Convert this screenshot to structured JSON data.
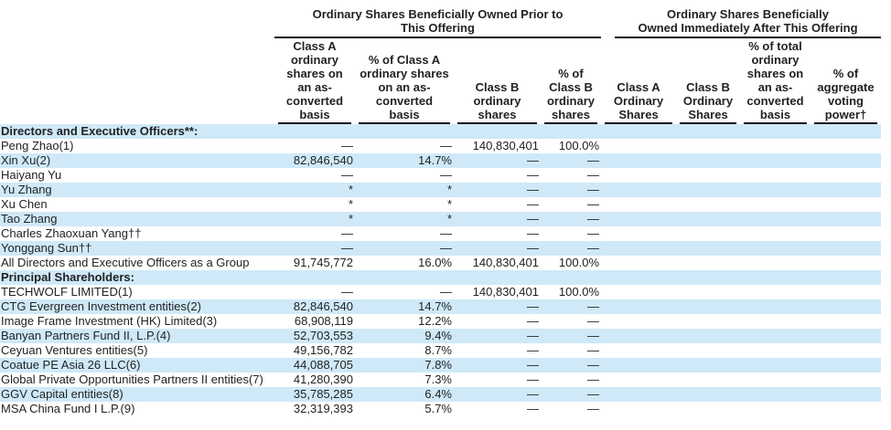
{
  "colors": {
    "row_stripe": "#cfe9f8",
    "header_rule": "#111111",
    "text": "#222222",
    "background": "#ffffff"
  },
  "table": {
    "groups": [
      {
        "title_lines": [
          "Ordinary Shares Beneficially Owned Prior to",
          "This Offering"
        ]
      },
      {
        "title_lines": [
          "Ordinary Shares Beneficially",
          "Owned Immediately After This Offering"
        ]
      }
    ],
    "columns": [
      {
        "label": "Class A ordinary shares on an as-converted basis"
      },
      {
        "label": "% of Class A ordinary shares on an as-converted basis"
      },
      {
        "label": "Class B ordinary shares"
      },
      {
        "label": "% of Class B ordinary shares"
      },
      {
        "label": "Class A Ordinary Shares"
      },
      {
        "label": "Class B Ordinary Shares"
      },
      {
        "label": "% of total ordinary shares on an as-converted basis"
      },
      {
        "label": "% of aggregate voting power†"
      }
    ],
    "rows": [
      {
        "type": "section",
        "name": "Directors and Executive Officers**:"
      },
      {
        "type": "data",
        "name": "Peng Zhao(1)",
        "values": [
          "—",
          "—",
          "140,830,401",
          "100.0%",
          "",
          "",
          "",
          ""
        ]
      },
      {
        "type": "data",
        "name": "Xin Xu(2)",
        "values": [
          "82,846,540",
          "14.7%",
          "—",
          "—",
          "",
          "",
          "",
          ""
        ]
      },
      {
        "type": "data",
        "name": "Haiyang Yu",
        "values": [
          "—",
          "—",
          "—",
          "—",
          "",
          "",
          "",
          ""
        ]
      },
      {
        "type": "data",
        "name": "Yu Zhang",
        "values": [
          "*",
          "*",
          "—",
          "—",
          "",
          "",
          "",
          ""
        ]
      },
      {
        "type": "data",
        "name": "Xu Chen",
        "values": [
          "*",
          "*",
          "—",
          "—",
          "",
          "",
          "",
          ""
        ]
      },
      {
        "type": "data",
        "name": "Tao Zhang",
        "values": [
          "*",
          "*",
          "—",
          "—",
          "",
          "",
          "",
          ""
        ]
      },
      {
        "type": "data",
        "name": "Charles Zhaoxuan Yang††",
        "values": [
          "—",
          "—",
          "—",
          "—",
          "",
          "",
          "",
          ""
        ]
      },
      {
        "type": "data",
        "name": "Yonggang Sun††",
        "values": [
          "—",
          "—",
          "—",
          "—",
          "",
          "",
          "",
          ""
        ]
      },
      {
        "type": "data",
        "name": "All Directors and Executive Officers as a Group",
        "values": [
          "91,745,772",
          "16.0%",
          "140,830,401",
          "100.0%",
          "",
          "",
          "",
          ""
        ]
      },
      {
        "type": "section",
        "name": "Principal Shareholders:"
      },
      {
        "type": "data",
        "name": "TECHWOLF LIMITED(1)",
        "values": [
          "—",
          "—",
          "140,830,401",
          "100.0%",
          "",
          "",
          "",
          ""
        ]
      },
      {
        "type": "data",
        "name": "CTG Evergreen Investment entities(2)",
        "values": [
          "82,846,540",
          "14.7%",
          "—",
          "—",
          "",
          "",
          "",
          ""
        ]
      },
      {
        "type": "data",
        "name": "Image Frame Investment (HK) Limited(3)",
        "values": [
          "68,908,119",
          "12.2%",
          "—",
          "—",
          "",
          "",
          "",
          ""
        ]
      },
      {
        "type": "data",
        "name": "Banyan Partners Fund II, L.P.(4)",
        "values": [
          "52,703,553",
          "9.4%",
          "—",
          "—",
          "",
          "",
          "",
          ""
        ]
      },
      {
        "type": "data",
        "name": "Ceyuan Ventures entities(5)",
        "values": [
          "49,156,782",
          "8.7%",
          "—",
          "—",
          "",
          "",
          "",
          ""
        ]
      },
      {
        "type": "data",
        "name": "Coatue PE Asia 26 LLC(6)",
        "values": [
          "44,088,705",
          "7.8%",
          "—",
          "—",
          "",
          "",
          "",
          ""
        ]
      },
      {
        "type": "data",
        "name": "Global Private Opportunities Partners II entities(7)",
        "values": [
          "41,280,390",
          "7.3%",
          "—",
          "—",
          "",
          "",
          "",
          ""
        ]
      },
      {
        "type": "data",
        "name": "GGV Capital entities(8)",
        "values": [
          "35,785,285",
          "6.4%",
          "—",
          "—",
          "",
          "",
          "",
          ""
        ]
      },
      {
        "type": "data",
        "name": "MSA China Fund I L.P.(9)",
        "values": [
          "32,319,393",
          "5.7%",
          "—",
          "—",
          "",
          "",
          "",
          ""
        ]
      }
    ]
  }
}
